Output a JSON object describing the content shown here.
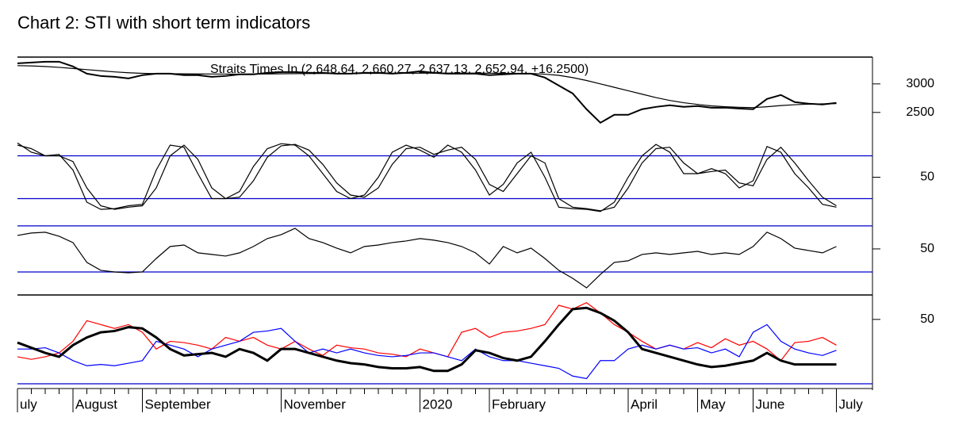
{
  "title": "Chart 2: STI with short term indicators",
  "chart_data": [
    {
      "type": "line",
      "title": "Straits Times In (2,648.64, 2,660.27, 2,637.13, 2,652.94, +16.2500)",
      "ylim": [
        2080,
        3470
      ],
      "yticks": [
        2500,
        3000
      ],
      "series": [
        {
          "color": "#000000",
          "values": [
            3361,
            3375,
            3389,
            3389,
            3306,
            3180,
            3139,
            3125,
            3097,
            3153,
            3180,
            3180,
            3153,
            3153,
            3125,
            3139,
            3167,
            3167,
            3194,
            3208,
            3208,
            3194,
            3194,
            3180,
            3180,
            3194,
            3194,
            3180,
            3194,
            3222,
            3194,
            3180,
            3180,
            3180,
            3153,
            3167,
            3180,
            3180,
            3111,
            2972,
            2833,
            2556,
            2319,
            2458,
            2458,
            2556,
            2597,
            2625,
            2597,
            2611,
            2583,
            2583,
            2569,
            2556,
            2736,
            2806,
            2681,
            2653,
            2639,
            2667
          ]
        },
        {
          "color": "#000000",
          "values": [
            3320,
            3315,
            3305,
            3290,
            3270,
            3250,
            3230,
            3210,
            3195,
            3185,
            3180,
            3178,
            3176,
            3175,
            3174,
            3172,
            3172,
            3173,
            3175,
            3178,
            3180,
            3182,
            3183,
            3183,
            3183,
            3184,
            3185,
            3186,
            3187,
            3188,
            3189,
            3189,
            3189,
            3189,
            3188,
            3186,
            3184,
            3183,
            3170,
            3150,
            3110,
            3060,
            3000,
            2940,
            2880,
            2820,
            2760,
            2710,
            2670,
            2640,
            2615,
            2600,
            2590,
            2585,
            2600,
            2620,
            2635,
            2645,
            2650,
            2655
          ]
        }
      ]
    },
    {
      "type": "line",
      "ylim": [
        -15,
        115
      ],
      "yticks": [
        50
      ],
      "levels": [
        80,
        20
      ],
      "level_color": "#0000cc",
      "series": [
        {
          "color": "#000000",
          "values": [
            98,
            85,
            80,
            82,
            60,
            15,
            5,
            6,
            10,
            12,
            60,
            95,
            92,
            55,
            20,
            20,
            30,
            65,
            90,
            97,
            95,
            80,
            55,
            30,
            20,
            25,
            50,
            85,
            95,
            88,
            78,
            95,
            85,
            60,
            25,
            40,
            70,
            85,
            50,
            8,
            6,
            5,
            2,
            15,
            50,
            80,
            96,
            85,
            55,
            55,
            62,
            55,
            35,
            45,
            93,
            85,
            55,
            35,
            12,
            8
          ]
        },
        {
          "color": "#000000",
          "values": [
            95,
            90,
            80,
            80,
            72,
            35,
            10,
            5,
            8,
            10,
            35,
            80,
            95,
            75,
            35,
            20,
            22,
            45,
            78,
            94,
            96,
            88,
            68,
            42,
            25,
            22,
            35,
            68,
            90,
            92,
            82,
            88,
            92,
            75,
            40,
            30,
            55,
            80,
            70,
            20,
            8,
            6,
            3,
            8,
            35,
            70,
            90,
            92,
            70,
            55,
            58,
            60,
            42,
            38,
            75,
            92,
            70,
            45,
            22,
            10
          ]
        }
      ]
    },
    {
      "type": "line",
      "ylim": [
        10,
        72
      ],
      "yticks": [
        50
      ],
      "levels": [
        70,
        30
      ],
      "level_color": "#0000cc",
      "series": [
        {
          "color": "#000000",
          "values": [
            61.7,
            63.8,
            64.5,
            61,
            55.5,
            38.3,
            31.4,
            30,
            29.3,
            30,
            41.7,
            52.1,
            53.4,
            46.6,
            45.2,
            43.8,
            46.6,
            52.1,
            59,
            62.4,
            67.9,
            59,
            55.5,
            50.7,
            46.6,
            52.1,
            53.4,
            55.5,
            56.9,
            59,
            57.6,
            55.5,
            52.1,
            46.6,
            36.9,
            52.1,
            46.6,
            50.7,
            41.7,
            31.4,
            24.5,
            16.2,
            27.9,
            38.3,
            39.7,
            45.2,
            46.6,
            45.2,
            46.6,
            47.9,
            45.2,
            46.6,
            45.2,
            52.1,
            64.5,
            59,
            50.7,
            48.6,
            46.6,
            52.1
          ]
        }
      ]
    },
    {
      "type": "line",
      "ylim": [
        0,
        69
      ],
      "yticks": [
        50
      ],
      "levels": [
        0
      ],
      "level_color": "#0000cc",
      "categories": [
        "uly",
        null,
        null,
        null,
        "August",
        null,
        null,
        null,
        null,
        "September",
        null,
        null,
        null,
        null,
        null,
        null,
        null,
        null,
        null,
        "November",
        null,
        null,
        null,
        null,
        null,
        null,
        null,
        null,
        null,
        "2020",
        null,
        null,
        null,
        null,
        "February",
        null,
        null,
        null,
        null,
        null,
        null,
        null,
        null,
        null,
        "April",
        null,
        null,
        null,
        null,
        "May",
        null,
        null,
        null,
        "June",
        null,
        null,
        null,
        null,
        null,
        "July"
      ],
      "series": [
        {
          "color": "#ff0000",
          "values": [
            21,
            19,
            21,
            24,
            33,
            49,
            46,
            43,
            46,
            40,
            27,
            33,
            32,
            30,
            27,
            36,
            33,
            36,
            30,
            27,
            33,
            27,
            22,
            30,
            28,
            27,
            24,
            23,
            21,
            27,
            24,
            21,
            40,
            43,
            36,
            40,
            41,
            43,
            46,
            61,
            58,
            63,
            55,
            46,
            40,
            33,
            27,
            30,
            27,
            32,
            28,
            35,
            30,
            33,
            27,
            18,
            32,
            33,
            36,
            30
          ]
        },
        {
          "color": "#0000ff",
          "values": [
            27,
            27,
            28,
            24,
            18,
            14,
            15,
            14,
            16,
            18,
            33,
            30,
            27,
            21,
            27,
            30,
            33,
            40,
            41,
            43,
            33,
            24,
            27,
            24,
            27,
            24,
            22,
            21,
            22,
            24,
            24,
            21,
            18,
            27,
            21,
            18,
            18,
            16,
            14,
            12,
            6,
            4,
            18,
            18,
            27,
            30,
            27,
            30,
            27,
            28,
            24,
            27,
            21,
            40,
            46,
            33,
            27,
            24,
            22,
            26
          ]
        },
        {
          "color": "#000000",
          "values": [
            32,
            28,
            24,
            21,
            30,
            36,
            40,
            41,
            44,
            43,
            36,
            27,
            22,
            23,
            24,
            21,
            27,
            24,
            18,
            27,
            27,
            24,
            21,
            18,
            16,
            15,
            13,
            12,
            12,
            13,
            10,
            10,
            15,
            26,
            24,
            20,
            18,
            21,
            33,
            46,
            58,
            59,
            55,
            49,
            40,
            27,
            24,
            21,
            18,
            15,
            13,
            14,
            16,
            18,
            24,
            18,
            15,
            15,
            15,
            15
          ]
        }
      ]
    }
  ]
}
